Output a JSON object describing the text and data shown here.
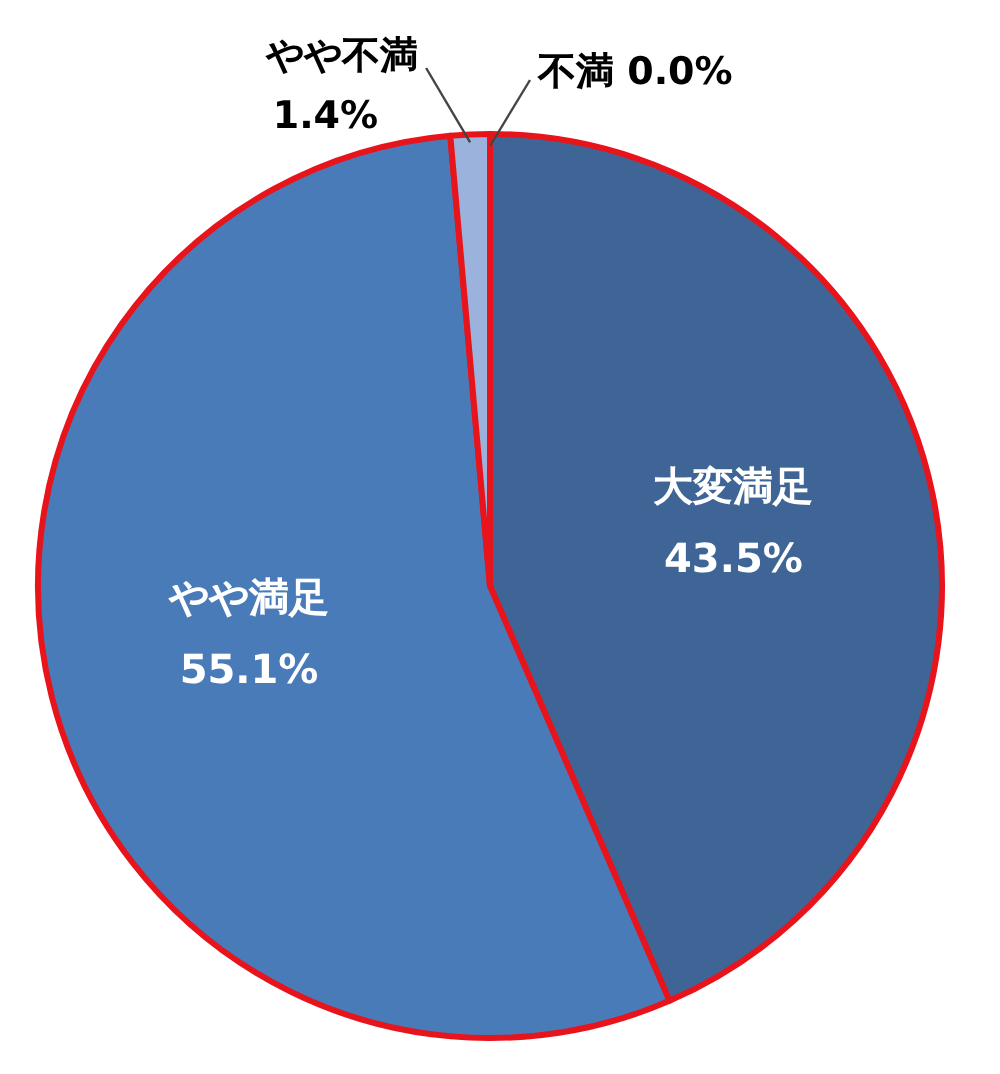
{
  "chart_data": {
    "type": "pie",
    "categories": [
      "大変満足",
      "やや満足",
      "やや不満",
      "不満"
    ],
    "values": [
      43.5,
      55.1,
      1.4,
      0.0
    ],
    "colors": [
      "#3f6596",
      "#4a7bb9",
      "#9bb3dc",
      "#b9c9e6"
    ],
    "value_labels": [
      "43.5%",
      "55.1%",
      "1.4%",
      "0.0%"
    ]
  }
}
